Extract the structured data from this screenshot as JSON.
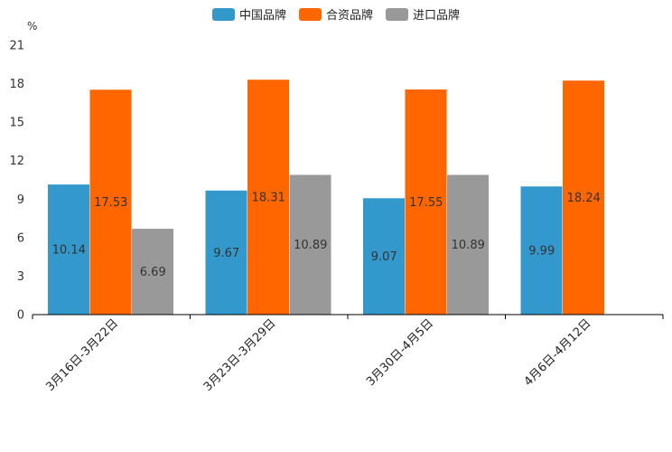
{
  "chart_data": {
    "type": "bar",
    "title": "",
    "ylabel": "%",
    "xlabel": "",
    "ylim": [
      0,
      21
    ],
    "yticks": [
      0,
      3,
      6,
      9,
      12,
      15,
      18,
      21
    ],
    "categories": [
      "3月16日-3月22日",
      "3月23日-3月29日",
      "3月30日-4月5日",
      "4月6日-4月12日"
    ],
    "series": [
      {
        "name": "中国品牌",
        "color": "#3399cc",
        "values": [
          10.14,
          9.67,
          9.07,
          9.99
        ],
        "labels": [
          "10.14",
          "9.67",
          "9.07",
          "9.99"
        ]
      },
      {
        "name": "合资品牌",
        "color": "#ff6600",
        "values": [
          17.53,
          18.31,
          17.55,
          18.24
        ],
        "labels": [
          "17.53",
          "18.31",
          "17.55",
          "18.24"
        ]
      },
      {
        "name": "进口品牌",
        "color": "#999999",
        "values": [
          6.69,
          10.89,
          10.89,
          null
        ],
        "labels": [
          "6.69",
          "10.89",
          "10.89",
          null
        ]
      }
    ],
    "legend": "top-center",
    "grid": false
  }
}
